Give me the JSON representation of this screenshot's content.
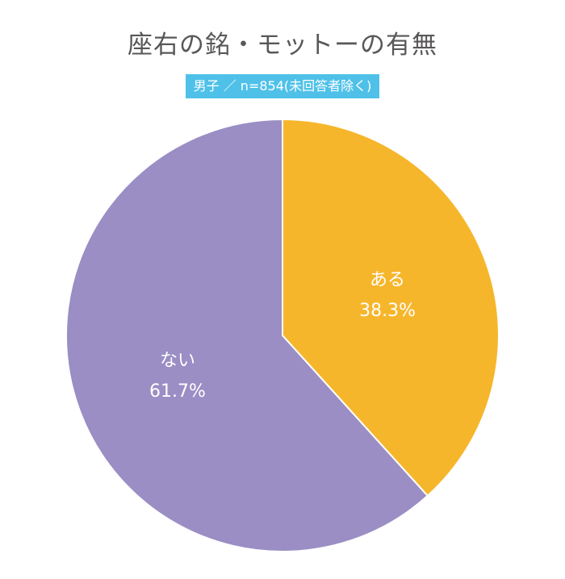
{
  "chart_data": {
    "type": "pie",
    "title": "座右の銘・モットーの有無",
    "subtitle": "男子 ／ n=854(未回答者除く)",
    "slices": [
      {
        "label": "ある",
        "value": 38.3,
        "display": "38.3%",
        "color": "#f6b62b"
      },
      {
        "label": "ない",
        "value": 61.7,
        "display": "61.7%",
        "color": "#9a8ec4"
      }
    ],
    "start": "12 o'clock",
    "direction": "clockwise"
  }
}
